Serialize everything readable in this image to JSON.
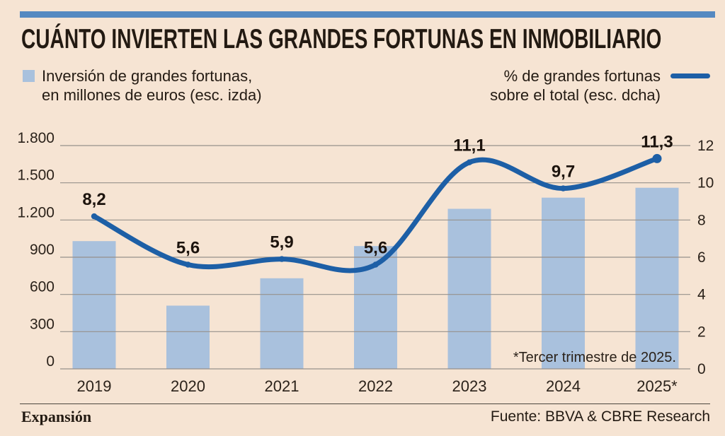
{
  "header": {
    "title": "CUÁNTO INVIERTEN LAS GRANDES FORTUNAS EN INMOBILIARIO"
  },
  "legend": {
    "bars": {
      "line1": "Inversión de grandes fortunas,",
      "line2": "en millones de euros (esc. izda)"
    },
    "line": {
      "line1": "% de grandes fortunas",
      "line2": "sobre el total (esc. dcha)"
    }
  },
  "chart_data": {
    "type": "combo-bar-line",
    "categories": [
      "2019",
      "2020",
      "2021",
      "2022",
      "2023",
      "2024",
      "2025*"
    ],
    "series": [
      {
        "name": "Inversión de grandes fortunas, en millones de euros",
        "type": "bar",
        "axis": "left",
        "values": [
          1030,
          510,
          730,
          990,
          1290,
          1380,
          1460
        ]
      },
      {
        "name": "% de grandes fortunas sobre el total",
        "type": "line",
        "axis": "right",
        "values": [
          8.2,
          5.6,
          5.9,
          5.6,
          11.1,
          9.7,
          11.3
        ],
        "point_labels": [
          "8,2",
          "5,6",
          "5,9",
          "5,6",
          "11,1",
          "9,7",
          "11,3"
        ]
      }
    ],
    "left_axis": {
      "min": 0,
      "max": 1800,
      "tick_labels": [
        "0",
        "300",
        "600",
        "900",
        "1.200",
        "1.500",
        "1.800"
      ]
    },
    "right_axis": {
      "min": 0,
      "max": 12,
      "tick_labels": [
        "0",
        "2",
        "4",
        "6",
        "8",
        "10",
        "12"
      ]
    },
    "grid": true,
    "legend_position": "top",
    "footnote": "*Tercer trimestre de 2025."
  },
  "footer": {
    "publisher": "Expansión",
    "source": "Fuente: BBVA & CBRE Research"
  },
  "colors": {
    "background": "#f6e4d3",
    "accent_bar": "#5589c1",
    "bar_fill": "#a9c1dd",
    "line": "#1d5fa6",
    "grid": "#96918b",
    "text": "#241b13"
  }
}
